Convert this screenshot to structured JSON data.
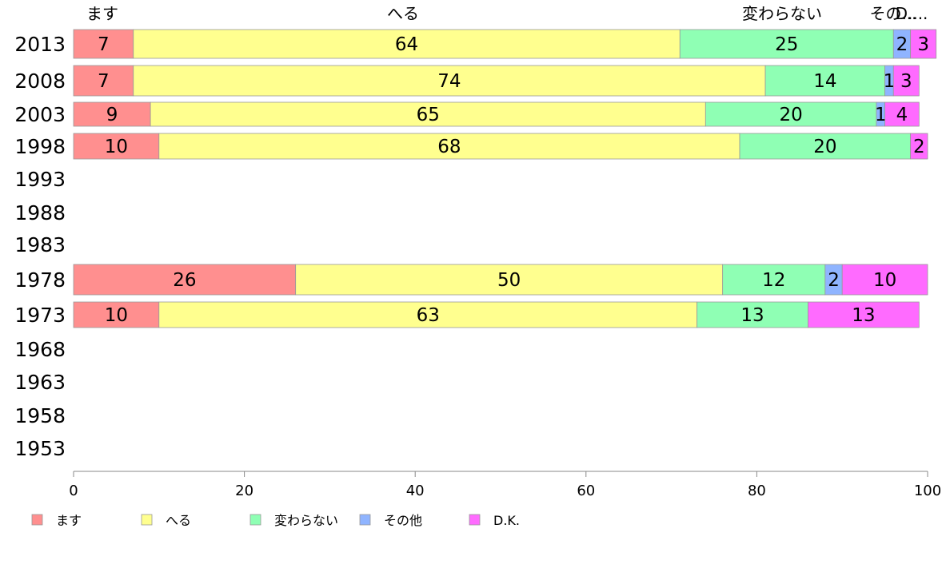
{
  "chart_data": {
    "type": "bar",
    "orientation": "horizontal",
    "stacked": true,
    "categories": [
      "2013",
      "2008",
      "2003",
      "1998",
      "1993",
      "1988",
      "1983",
      "1978",
      "1973",
      "1968",
      "1963",
      "1958",
      "1953"
    ],
    "series": [
      {
        "name": "ます",
        "color": "#ff8f8f",
        "values": [
          7,
          7,
          9,
          10,
          null,
          null,
          null,
          26,
          10,
          null,
          null,
          null,
          null
        ]
      },
      {
        "name": "へる",
        "color": "#ffff8f",
        "values": [
          64,
          74,
          65,
          68,
          null,
          null,
          null,
          50,
          63,
          null,
          null,
          null,
          null
        ]
      },
      {
        "name": "変わらない",
        "color": "#8fffb4",
        "values": [
          25,
          14,
          20,
          20,
          null,
          null,
          null,
          12,
          13,
          null,
          null,
          null,
          null
        ]
      },
      {
        "name": "その他",
        "color": "#8fb4ff",
        "values": [
          2,
          1,
          1,
          0,
          null,
          null,
          null,
          2,
          0,
          null,
          null,
          null,
          null
        ]
      },
      {
        "name": "D.K.",
        "color": "#ff6bff",
        "values": [
          3,
          3,
          4,
          2,
          null,
          null,
          null,
          10,
          13,
          null,
          null,
          null,
          null
        ]
      }
    ],
    "top_labels": [
      "ます",
      "へる",
      "変わらない",
      "その...",
      "D...."
    ],
    "xlim": [
      0,
      100
    ],
    "xticks": [
      "0",
      "20",
      "40",
      "60",
      "80",
      "100"
    ],
    "grid": false,
    "legend_position": "bottom-left"
  }
}
